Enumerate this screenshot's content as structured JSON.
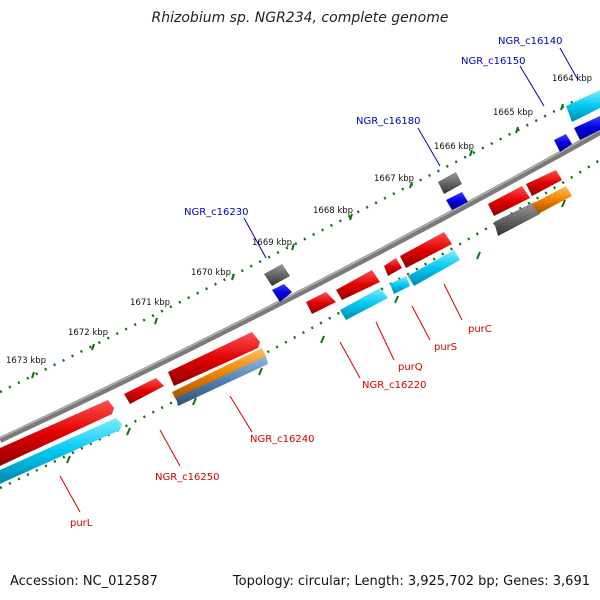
{
  "title": "Rhizobium sp. NGR234, complete genome",
  "footer": {
    "accession": "Accession: NC_012587",
    "summary": "Topology: circular; Length: 3,925,702 bp; Genes: 3,691"
  },
  "ruler_labels": [
    "1664 kbp",
    "1665 kbp",
    "1666 kbp",
    "1667 kbp",
    "1668 kbp",
    "1669 kbp",
    "1670 kbp",
    "1671 kbp",
    "1672 kbp",
    "1673 kbp"
  ],
  "top_labels": [
    "NGR_c16140",
    "NGR_c16150",
    "NGR_c16180",
    "NGR_c16230"
  ],
  "bottom_labels": [
    "purC",
    "purS",
    "purQ",
    "NGR_c16220",
    "NGR_c16240",
    "NGR_c16250",
    "purL"
  ],
  "colors": {
    "backbone": "#7a7a7a",
    "gene_red": "#e00000",
    "gene_cyan": "#00c8f0",
    "gene_blue": "#0000e0",
    "gene_gray": "#555555",
    "gene_orange": "#f08000",
    "gene_steel": "#5080b0",
    "tick_green": "#107010",
    "label_blue": "#0000c0",
    "label_red": "#d00000"
  }
}
